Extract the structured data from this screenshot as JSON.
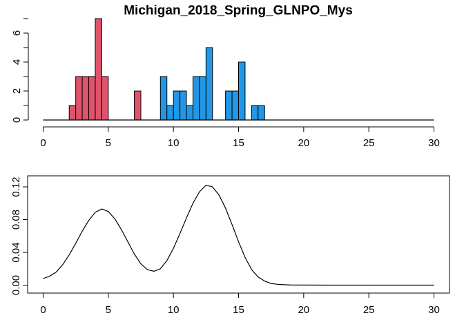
{
  "chart_data": [
    {
      "type": "bar",
      "title": "Michigan_2018_Spring_GLNPO_Mys",
      "xlabel": "",
      "ylabel": "",
      "xlim": [
        0,
        30
      ],
      "ylim": [
        0,
        7
      ],
      "x_ticks": [
        0,
        5,
        10,
        15,
        20,
        25,
        30
      ],
      "y_ticks": [
        0,
        2,
        4,
        6
      ],
      "bin_width": 0.5,
      "colors": {
        "group1": "#DF536B",
        "group2": "#2297E6"
      },
      "series": [
        {
          "bins": [
            {
              "x0": 2.0,
              "x1": 2.5,
              "count": 1
            },
            {
              "x0": 2.5,
              "x1": 3.0,
              "count": 3
            },
            {
              "x0": 3.0,
              "x1": 3.5,
              "count": 3
            },
            {
              "x0": 3.5,
              "x1": 4.0,
              "count": 3
            },
            {
              "x0": 4.0,
              "x1": 4.5,
              "count": 7
            },
            {
              "x0": 4.5,
              "x1": 5.0,
              "count": 3
            },
            {
              "x0": 7.0,
              "x1": 7.5,
              "count": 2
            }
          ],
          "color": "#DF536B"
        },
        {
          "bins": [
            {
              "x0": 9.0,
              "x1": 9.5,
              "count": 3
            },
            {
              "x0": 9.5,
              "x1": 10.0,
              "count": 1
            },
            {
              "x0": 10.0,
              "x1": 10.5,
              "count": 2
            },
            {
              "x0": 10.5,
              "x1": 11.0,
              "count": 2
            },
            {
              "x0": 11.0,
              "x1": 11.5,
              "count": 1
            },
            {
              "x0": 11.5,
              "x1": 12.0,
              "count": 3
            },
            {
              "x0": 12.0,
              "x1": 12.5,
              "count": 3
            },
            {
              "x0": 12.5,
              "x1": 13.0,
              "count": 5
            },
            {
              "x0": 14.0,
              "x1": 14.5,
              "count": 2
            },
            {
              "x0": 14.5,
              "x1": 15.0,
              "count": 2
            },
            {
              "x0": 15.0,
              "x1": 15.5,
              "count": 4
            },
            {
              "x0": 16.0,
              "x1": 16.5,
              "count": 1
            },
            {
              "x0": 16.5,
              "x1": 17.0,
              "count": 1
            }
          ],
          "color": "#2297E6"
        }
      ],
      "baseline": {
        "x0": 0,
        "x1": 30
      }
    },
    {
      "type": "line",
      "title": "",
      "xlabel": "",
      "ylabel": "",
      "xlim": [
        0,
        30
      ],
      "ylim": [
        0,
        0.12
      ],
      "x_ticks": [
        0,
        5,
        10,
        15,
        20,
        25,
        30
      ],
      "y_ticks": [
        "0.00",
        "0.04",
        "0.08",
        "0.12"
      ],
      "series": [
        {
          "x": [
            0,
            0.5,
            1,
            1.5,
            2,
            2.5,
            3,
            3.5,
            4,
            4.5,
            5,
            5.5,
            6,
            6.5,
            7,
            7.5,
            8,
            8.5,
            9,
            9.5,
            10,
            10.5,
            11,
            11.5,
            12,
            12.5,
            13,
            13.5,
            14,
            14.5,
            15,
            15.5,
            16,
            16.5,
            17,
            17.5,
            18,
            18.5,
            19,
            20,
            22,
            25,
            28,
            30
          ],
          "y": [
            0.008,
            0.011,
            0.016,
            0.025,
            0.037,
            0.051,
            0.066,
            0.079,
            0.089,
            0.093,
            0.09,
            0.081,
            0.068,
            0.053,
            0.038,
            0.026,
            0.019,
            0.017,
            0.02,
            0.03,
            0.045,
            0.063,
            0.082,
            0.1,
            0.114,
            0.122,
            0.12,
            0.11,
            0.094,
            0.074,
            0.053,
            0.034,
            0.019,
            0.01,
            0.005,
            0.002,
            0.001,
            0.0005,
            0.0002,
            0.0001,
            0.0,
            0.0,
            0.0,
            0.0
          ],
          "color": "#000000"
        }
      ]
    }
  ]
}
